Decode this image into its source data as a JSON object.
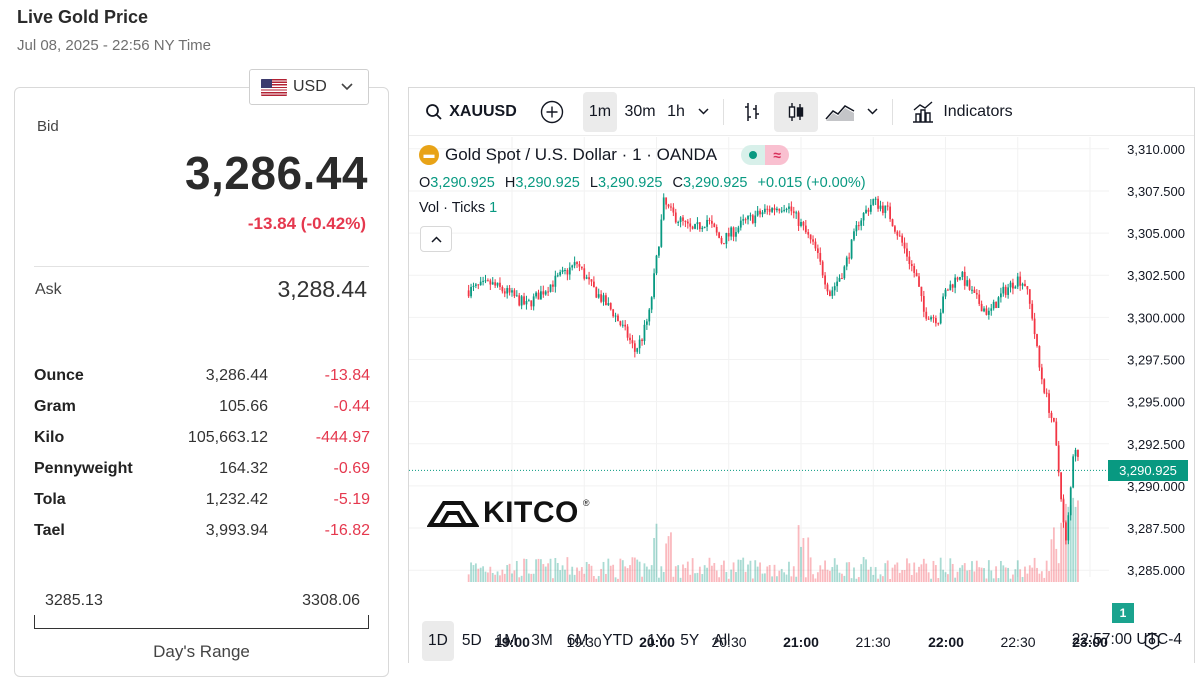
{
  "header": {
    "title": "Live Gold Price",
    "subtitle": "Jul 08, 2025 - 22:56 NY Time"
  },
  "currency": {
    "selected": "USD",
    "flag_icon": "us-flag-icon"
  },
  "quote": {
    "bid_label": "Bid",
    "bid": "3,286.44",
    "change": "-13.84 (-0.42%)",
    "ask_label": "Ask",
    "ask": "3,288.44"
  },
  "units": [
    {
      "name": "Ounce",
      "price": "3,286.44",
      "change": "-13.84"
    },
    {
      "name": "Gram",
      "price": "105.66",
      "change": "-0.44"
    },
    {
      "name": "Kilo",
      "price": "105,663.12",
      "change": "-444.97"
    },
    {
      "name": "Pennyweight",
      "price": "164.32",
      "change": "-0.69"
    },
    {
      "name": "Tola",
      "price": "1,232.42",
      "change": "-5.19"
    },
    {
      "name": "Tael",
      "price": "3,993.94",
      "change": "-16.82"
    }
  ],
  "day_range": {
    "low": "3285.13",
    "high": "3308.06",
    "label": "Day's Range"
  },
  "toolbar": {
    "symbol": "XAUUSD",
    "intervals": [
      "1m",
      "30m",
      "1h"
    ],
    "active_interval": "1m",
    "indicators_label": "Indicators"
  },
  "legend": {
    "title": "Gold Spot / U.S. Dollar · 1 · OANDA",
    "o_label": "O",
    "o": "3,290.925",
    "h_label": "H",
    "h": "3,290.925",
    "l_label": "L",
    "l": "3,290.925",
    "c_label": "C",
    "c": "3,290.925",
    "change": "+0.015 (+0.00%)",
    "vol_label": "Vol · Ticks",
    "vol_value": "1"
  },
  "price_tag": "3,290.925",
  "volume_tag": "1",
  "watermark": "KITCO",
  "range_buttons": [
    "1D",
    "5D",
    "1M",
    "3M",
    "6M",
    "YTD",
    "1Y",
    "5Y",
    "All"
  ],
  "active_range": "1D",
  "clock": "22:57:00 UTC-4",
  "colors": {
    "up": "#089981",
    "down": "#f23645",
    "negative_text": "#e5384e"
  },
  "chart_data": {
    "type": "candlestick",
    "symbol": "XAUUSD",
    "interval": "1m",
    "y_ticks": [
      "3,310.000",
      "3,307.500",
      "3,305.000",
      "3,302.500",
      "3,300.000",
      "3,297.500",
      "3,295.000",
      "3,292.500",
      "3,290.000",
      "3,287.500",
      "3,285.000"
    ],
    "ylim": [
      3284.3,
      3310.7
    ],
    "x_ticks": [
      {
        "label": "19:00",
        "bold": true
      },
      {
        "label": "19:30",
        "bold": false
      },
      {
        "label": "20:00",
        "bold": true
      },
      {
        "label": "20:30",
        "bold": false
      },
      {
        "label": "21:00",
        "bold": true
      },
      {
        "label": "21:30",
        "bold": false
      },
      {
        "label": "22:00",
        "bold": true
      },
      {
        "label": "22:30",
        "bold": false
      },
      {
        "label": "23:00",
        "bold": true
      }
    ],
    "close_path": [
      [
        18.7,
        3301.6
      ],
      [
        18.85,
        3302.0
      ],
      [
        19.0,
        3301.3
      ],
      [
        19.1,
        3300.7
      ],
      [
        19.3,
        3302.2
      ],
      [
        19.45,
        3303.2
      ],
      [
        19.55,
        3301.8
      ],
      [
        19.7,
        3300.3
      ],
      [
        19.8,
        3298.9
      ],
      [
        19.85,
        3298.0
      ],
      [
        19.9,
        3298.8
      ],
      [
        19.95,
        3300.2
      ],
      [
        20.0,
        3303.4
      ],
      [
        20.05,
        3306.8
      ],
      [
        20.1,
        3306.2
      ],
      [
        20.25,
        3305.1
      ],
      [
        20.35,
        3305.8
      ],
      [
        20.45,
        3304.5
      ],
      [
        20.6,
        3305.6
      ],
      [
        20.75,
        3306.3
      ],
      [
        20.9,
        3306.7
      ],
      [
        21.0,
        3305.5
      ],
      [
        21.1,
        3304.0
      ],
      [
        21.2,
        3301.4
      ],
      [
        21.3,
        3302.9
      ],
      [
        21.4,
        3305.7
      ],
      [
        21.5,
        3306.9
      ],
      [
        21.6,
        3306.3
      ],
      [
        21.7,
        3304.4
      ],
      [
        21.8,
        3302.3
      ],
      [
        21.85,
        3300.3
      ],
      [
        21.95,
        3299.9
      ],
      [
        22.0,
        3301.5
      ],
      [
        22.1,
        3302.6
      ],
      [
        22.2,
        3301.2
      ],
      [
        22.3,
        3300.2
      ],
      [
        22.4,
        3301.5
      ],
      [
        22.5,
        3302.3
      ],
      [
        22.55,
        3302.0
      ],
      [
        22.6,
        3300.1
      ],
      [
        22.65,
        3297.0
      ],
      [
        22.7,
        3295.2
      ],
      [
        22.75,
        3293.5
      ],
      [
        22.8,
        3289.5
      ],
      [
        22.83,
        3286.3
      ],
      [
        22.86,
        3289.0
      ],
      [
        22.89,
        3292.8
      ],
      [
        22.93,
        3290.925
      ]
    ],
    "last_price": 3290.925,
    "volume_max_ticks": null
  }
}
